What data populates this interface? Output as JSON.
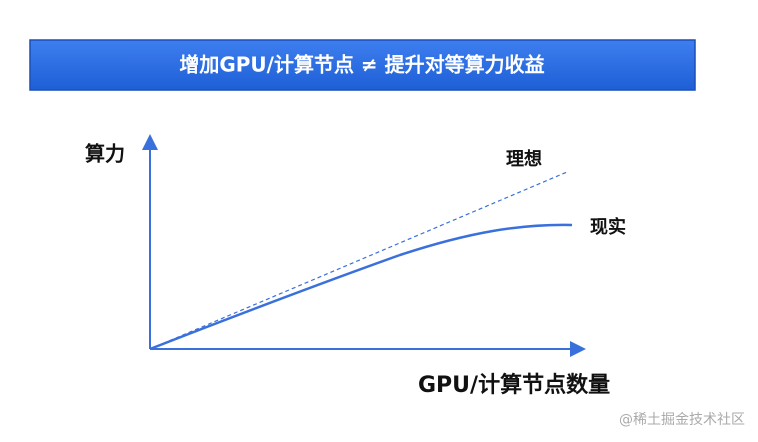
{
  "header": {
    "title": "增加GPU/计算节点 ≠ 提升对等算力收益"
  },
  "diagram": {
    "y_axis_label": "算力",
    "x_axis_label": "GPU/计算节点数量",
    "lines": [
      {
        "label": "理想"
      },
      {
        "label": "现实"
      }
    ]
  },
  "watermark": "@稀土掘金技术社区"
}
